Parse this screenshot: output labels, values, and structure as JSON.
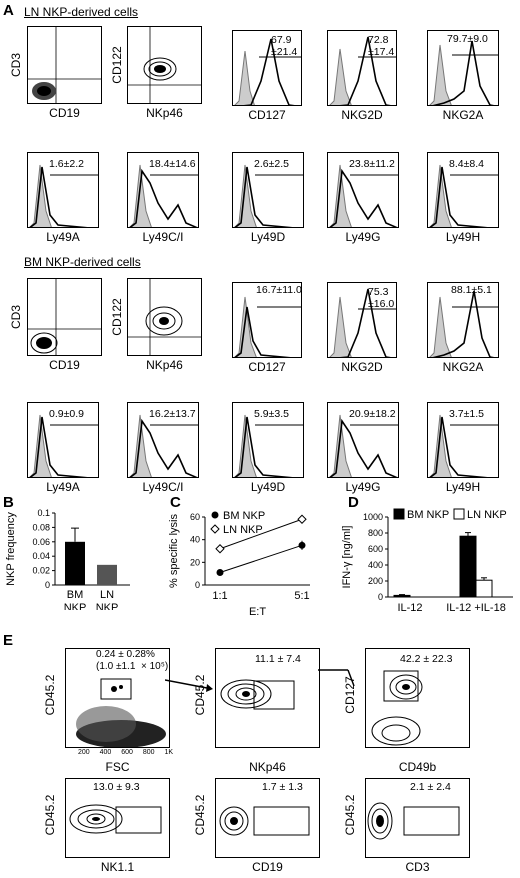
{
  "panel_letters": {
    "a": "A",
    "b": "B",
    "c": "C",
    "d": "D",
    "e": "E"
  },
  "sections": {
    "ln_title": "LN NKP-derived cells",
    "bm_title": "BM NKP-derived cells"
  },
  "ln_row1": {
    "dot1": {
      "y": "CD3",
      "x": "CD19"
    },
    "dot2": {
      "y": "CD122",
      "x": "NKp46"
    },
    "h1": {
      "x": "CD127",
      "value": "67.9\n±21.4"
    },
    "h2": {
      "x": "NKG2D",
      "value": "72.8\n±17.4"
    },
    "h3": {
      "x": "NKG2A",
      "value": "79.7±9.0"
    }
  },
  "ln_row2": [
    {
      "x": "Ly49A",
      "value": "1.6±2.2"
    },
    {
      "x": "Ly49C/I",
      "value": "18.4±14.6"
    },
    {
      "x": "Ly49D",
      "value": "2.6±2.5"
    },
    {
      "x": "Ly49G",
      "value": "23.8±11.2"
    },
    {
      "x": "Ly49H",
      "value": "8.4±8.4"
    }
  ],
  "bm_row1": {
    "dot1": {
      "y": "CD3",
      "x": "CD19"
    },
    "dot2": {
      "y": "CD122",
      "x": "NKp46"
    },
    "h1": {
      "x": "CD127",
      "value": "16.7±11.0"
    },
    "h2": {
      "x": "NKG2D",
      "value": "75.3\n±16.0"
    },
    "h3": {
      "x": "NKG2A",
      "value": "88.1±5.1"
    }
  },
  "bm_row2": [
    {
      "x": "Ly49A",
      "value": "0.9±0.9"
    },
    {
      "x": "Ly49C/I",
      "value": "16.2±13.7"
    },
    {
      "x": "Ly49D",
      "value": "5.9±3.5"
    },
    {
      "x": "Ly49G",
      "value": "20.9±18.2"
    },
    {
      "x": "Ly49H",
      "value": "3.7±1.5"
    }
  ],
  "chart_data": [
    {
      "type": "bar",
      "title": "",
      "ylabel": "NKP frequency",
      "categories": [
        "BM\nNKP",
        "LN\nNKP"
      ],
      "values": [
        0.06,
        0.028
      ],
      "errors": [
        0.019,
        0
      ],
      "ylim": [
        0,
        0.1
      ],
      "yticks": [
        "0",
        "0.02",
        "0.04",
        "0.06",
        "0.08",
        "0.1"
      ],
      "colors": [
        "#000000",
        "#555555"
      ]
    },
    {
      "type": "line",
      "ylabel": "% specific lysis",
      "xlabel": "E:T",
      "categories": [
        "1:1",
        "5:1"
      ],
      "ylim": [
        0,
        60
      ],
      "yticks": [
        "0",
        "20",
        "40",
        "60"
      ],
      "series": [
        {
          "name": "BM NKP",
          "values": [
            11,
            35
          ],
          "marker": "filled-circle"
        },
        {
          "name": "LN NKP",
          "values": [
            32,
            58
          ],
          "marker": "open-diamond"
        }
      ]
    },
    {
      "type": "bar",
      "ylabel": "IFN-γ [ng/ml]",
      "categories": [
        "IL-12",
        "IL-12 +IL-18"
      ],
      "ylim": [
        0,
        1000
      ],
      "yticks": [
        "0",
        "200",
        "400",
        "600",
        "800",
        "1000"
      ],
      "series": [
        {
          "name": "BM NKP",
          "values": [
            20,
            760
          ],
          "errors": [
            10,
            45
          ],
          "color": "#000000"
        },
        {
          "name": "LN NKP",
          "values": [
            0,
            210
          ],
          "errors": [
            0,
            30
          ],
          "color": "#ffffff"
        }
      ]
    }
  ],
  "panel_e": {
    "p1": {
      "y": "CD45.2",
      "x": "FSC",
      "value": "0.24 ± 0.28%\n(1.0 ±1.1  × 10⁵)",
      "xticks": [
        "200",
        "400",
        "600",
        "800",
        "1K"
      ]
    },
    "p2": {
      "y": "CD45.2",
      "x": "NKp46",
      "value": "11.1 ± 7.4"
    },
    "p3": {
      "y": "CD127",
      "x": "CD49b",
      "value": "42.2 ± 22.3"
    },
    "p4": {
      "y": "CD45.2",
      "x": "NK1.1",
      "value": "13.0 ± 9.3"
    },
    "p5": {
      "y": "CD45.2",
      "x": "CD19",
      "value": "1.7 ± 1.3"
    },
    "p6": {
      "y": "CD45.2",
      "x": "CD3",
      "value": "2.1 ± 2.4"
    }
  }
}
